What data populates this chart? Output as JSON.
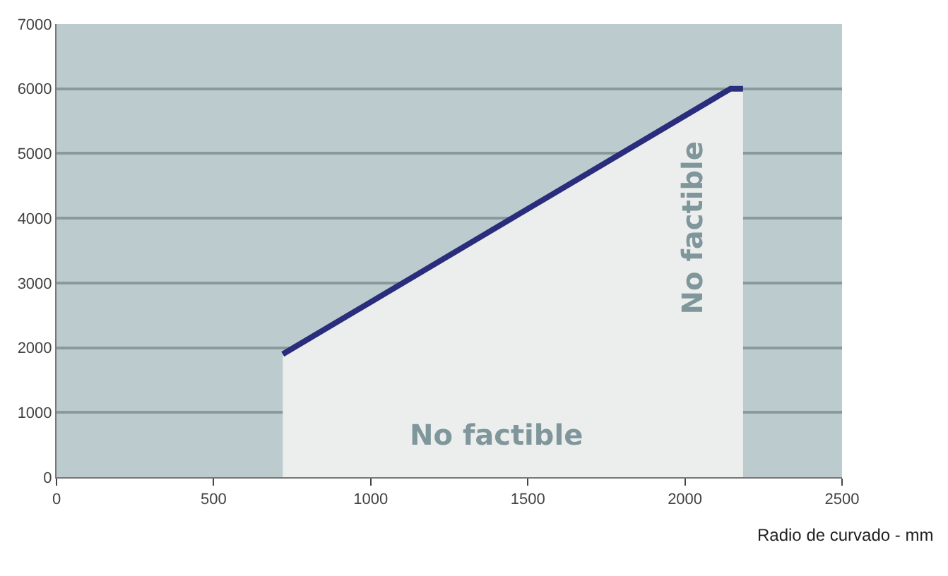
{
  "chart_data": {
    "type": "area",
    "xlabel": "Radio de curvado - mm",
    "x": [
      720,
      2145,
      2185
    ],
    "series": [
      {
        "color": "#2a2c7c",
        "values": [
          1900,
          6000,
          6000
        ]
      }
    ],
    "xlim": [
      0,
      2500
    ],
    "xticks": [
      0,
      500,
      1000,
      1500,
      2000,
      2500
    ],
    "ylim": [
      0,
      7000
    ],
    "yticks": [
      0,
      1000,
      2000,
      3000,
      4000,
      5000,
      6000,
      7000
    ],
    "grid": "y",
    "marker": "none",
    "line_style": "solid",
    "annotations": [
      "No factible",
      "No factible"
    ]
  }
}
